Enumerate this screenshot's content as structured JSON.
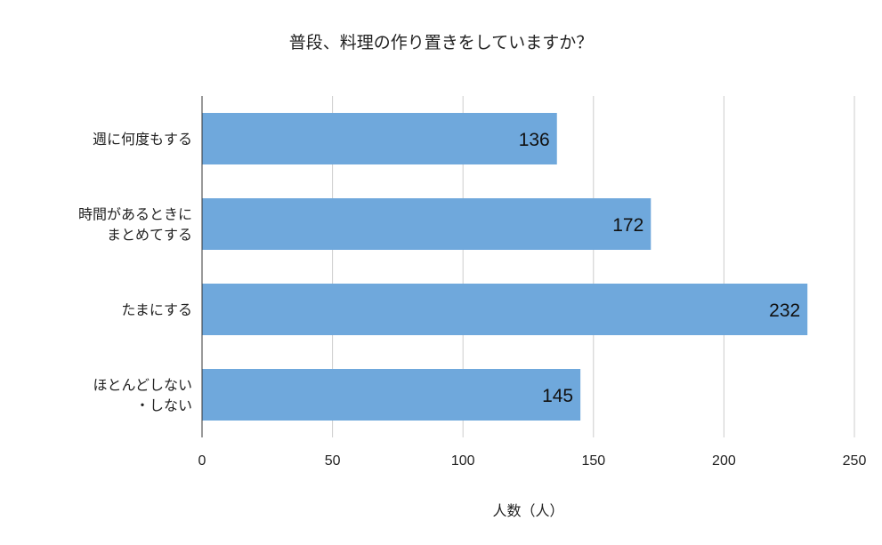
{
  "chart_data": {
    "type": "bar",
    "orientation": "horizontal",
    "title": "普段、料理の作り置きをしていますか？",
    "xlabel": "人数（人）",
    "ylabel": "",
    "categories": [
      [
        "週に何度もする"
      ],
      [
        "時間があるときに",
        "まとめてする"
      ],
      [
        "たまにする"
      ],
      [
        "ほとんどしない",
        "・しない"
      ]
    ],
    "values": [
      136,
      172,
      232,
      145
    ],
    "data_labels": [
      "136",
      "172",
      "232",
      "145"
    ],
    "xlim": [
      0,
      250
    ],
    "xticks": [
      0,
      50,
      100,
      150,
      200,
      250
    ],
    "xtick_labels": [
      "0",
      "50",
      "100",
      "150",
      "200",
      "250"
    ],
    "grid": "vertical",
    "legend": "none",
    "colors": {
      "bar": "#6fa8dc",
      "grid": "#cccccc",
      "axis": "#333333",
      "text": "#222222"
    }
  }
}
